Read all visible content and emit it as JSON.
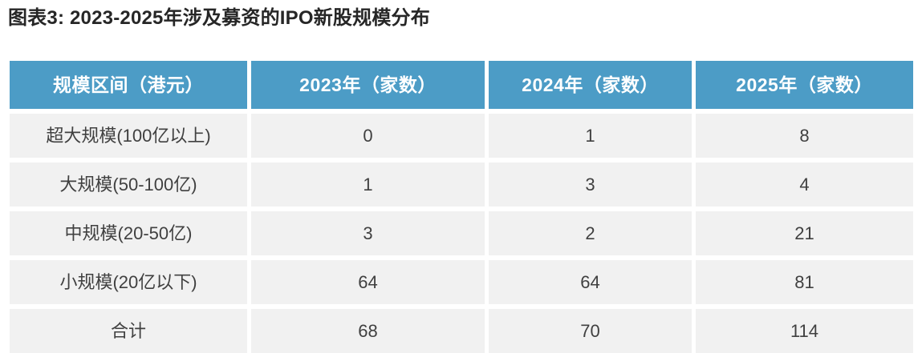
{
  "title": "图表3: 2023-2025年涉及募资的IPO新股规模分布",
  "colors": {
    "header_bg": "#4c9cc6",
    "row_bg": "#f1f1f1",
    "header_text": "#ffffff",
    "body_text": "#404040",
    "title_text": "#262626",
    "page_bg": "#ffffff"
  },
  "table": {
    "columns": [
      "规模区间（港元）",
      "2023年（家数）",
      "2024年（家数）",
      "2025年（家数）"
    ],
    "rows": [
      {
        "label": "超大规模(100亿以上)",
        "values": [
          "0",
          "1",
          "8"
        ]
      },
      {
        "label": "大规模(50-100亿)",
        "values": [
          "1",
          "3",
          "4"
        ]
      },
      {
        "label": "中规模(20-50亿)",
        "values": [
          "3",
          "2",
          "21"
        ]
      },
      {
        "label": "小规模(20亿以下)",
        "values": [
          "64",
          "64",
          "81"
        ]
      },
      {
        "label": "合计",
        "values": [
          "68",
          "70",
          "114"
        ]
      }
    ]
  }
}
